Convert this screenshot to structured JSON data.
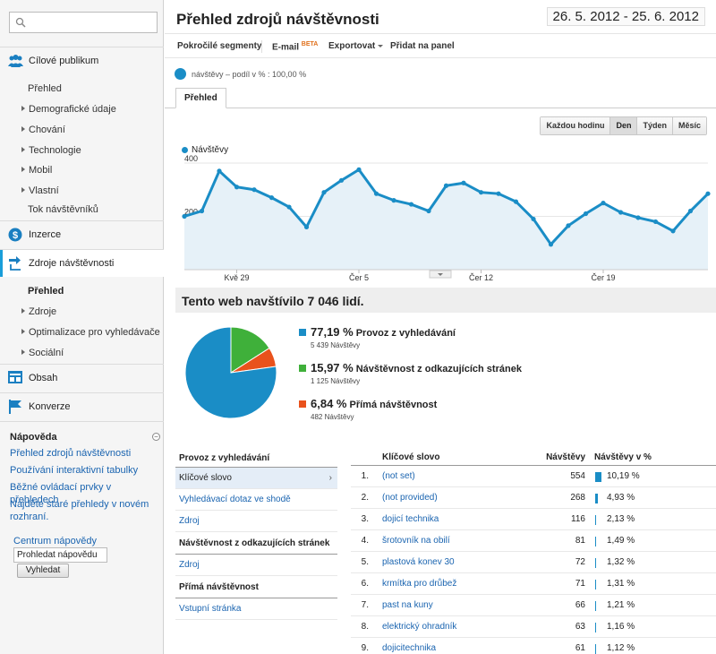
{
  "sidebar": {
    "search_placeholder": "",
    "sections": [
      {
        "label": "Cílové publikum",
        "icon": "audience-icon"
      },
      {
        "label": "Inzerce",
        "icon": "dollar-icon"
      },
      {
        "label": "Zdroje návštěvnosti",
        "icon": "traffic-sources-icon"
      },
      {
        "label": "Obsah",
        "icon": "content-icon"
      },
      {
        "label": "Konverze",
        "icon": "flag-icon"
      }
    ],
    "audience_items": [
      "Přehled",
      "Demografické údaje",
      "Chování",
      "Technologie",
      "Mobil",
      "Vlastní",
      "Tok návštěvníků"
    ],
    "traffic_items": [
      "Přehled",
      "Zdroje",
      "Optimalizace pro vyhledávače",
      "Sociální"
    ],
    "help": {
      "title": "Nápověda",
      "links": [
        "Přehled zdrojů návštěvnosti",
        "Používání interaktivní tabulky",
        "Běžné ovládací prvky v přehledech",
        "Najděte staré přehledy v novém rozhraní."
      ],
      "center_label": "Centrum nápovědy",
      "input_value": "Prohledat nápovědu",
      "search_button": "Vyhledat"
    }
  },
  "header": {
    "title": "Přehled zdrojů návštěvnosti",
    "date_range": "26. 5. 2012 - 25. 6. 2012"
  },
  "toolbar": {
    "advanced_segments": "Pokročilé segmenty",
    "email": "E-mail",
    "beta": "BETA",
    "export": "Exportovat",
    "add_to_dashboard": "Přidat na panel"
  },
  "segment_label": "návštěvy – podíl v % : 100,00 %",
  "tab_overview": "Přehled",
  "period_buttons": [
    "Každou hodinu",
    "Den",
    "Týden",
    "Měsíc"
  ],
  "period_selected": "Den",
  "chart_data": {
    "type": "area",
    "series": [
      {
        "name": "Návštěvy",
        "values": [
          200,
          220,
          370,
          310,
          300,
          270,
          235,
          160,
          290,
          335,
          375,
          285,
          260,
          245,
          220,
          315,
          325,
          290,
          285,
          255,
          190,
          95,
          165,
          210,
          250,
          215,
          195,
          180,
          145,
          220,
          285
        ]
      }
    ],
    "ylim": [
      0,
      420
    ],
    "y_ticks": [
      "400",
      "200"
    ],
    "x_ticks": [
      "Kvě 29",
      "Čer 5",
      "Čer 12",
      "Čer 19"
    ],
    "color": "#1a8dc6"
  },
  "summary": {
    "headline": "Tento web navštívilo 7 046 lidí.",
    "items": [
      {
        "pct": "77,19 %",
        "label": "Provoz z vyhledávání",
        "sub": "5 439 Návštěvy",
        "color": "#1a8dc6",
        "value": 77.19
      },
      {
        "pct": "15,97 %",
        "label": "Návštěvnost z odkazujících stránek",
        "sub": "1 125 Návštěvy",
        "color": "#3fb03a",
        "value": 15.97
      },
      {
        "pct": "6,84 %",
        "label": "Přímá návštěvnost",
        "sub": "482 Návštěvy",
        "color": "#e9521c",
        "value": 6.84
      }
    ]
  },
  "left_table": {
    "search_head": "Provoz z vyhledávání",
    "search_rows": [
      "Klíčové slovo",
      "Vyhledávací dotaz ve shodě",
      "Zdroj"
    ],
    "referral_head": "Návštěvnost z odkazujících stránek",
    "referral_rows": [
      "Zdroj"
    ],
    "direct_head": "Přímá návštěvnost",
    "direct_rows": [
      "Vstupní stránka"
    ]
  },
  "right_table": {
    "headers": {
      "keyword": "Klíčové slovo",
      "visits": "Návštěvy",
      "pct": "Návštěvy v %"
    },
    "rows": [
      {
        "idx": "1.",
        "kw": "(not set)",
        "visits": "554",
        "pct": "10,19 %",
        "v": 10.19
      },
      {
        "idx": "2.",
        "kw": "(not provided)",
        "visits": "268",
        "pct": "4,93 %",
        "v": 4.93
      },
      {
        "idx": "3.",
        "kw": "dojicí technika",
        "visits": "116",
        "pct": "2,13 %",
        "v": 2.13
      },
      {
        "idx": "4.",
        "kw": "šrotovník na obilí",
        "visits": "81",
        "pct": "1,49 %",
        "v": 1.49
      },
      {
        "idx": "5.",
        "kw": "plastová konev 30",
        "visits": "72",
        "pct": "1,32 %",
        "v": 1.32
      },
      {
        "idx": "6.",
        "kw": "krmítka pro drůbež",
        "visits": "71",
        "pct": "1,31 %",
        "v": 1.31
      },
      {
        "idx": "7.",
        "kw": "past na kuny",
        "visits": "66",
        "pct": "1,21 %",
        "v": 1.21
      },
      {
        "idx": "8.",
        "kw": "elektrický ohradník",
        "visits": "63",
        "pct": "1,16 %",
        "v": 1.16
      },
      {
        "idx": "9.",
        "kw": "dojicitechnika",
        "visits": "61",
        "pct": "1,12 %",
        "v": 1.12
      }
    ]
  }
}
